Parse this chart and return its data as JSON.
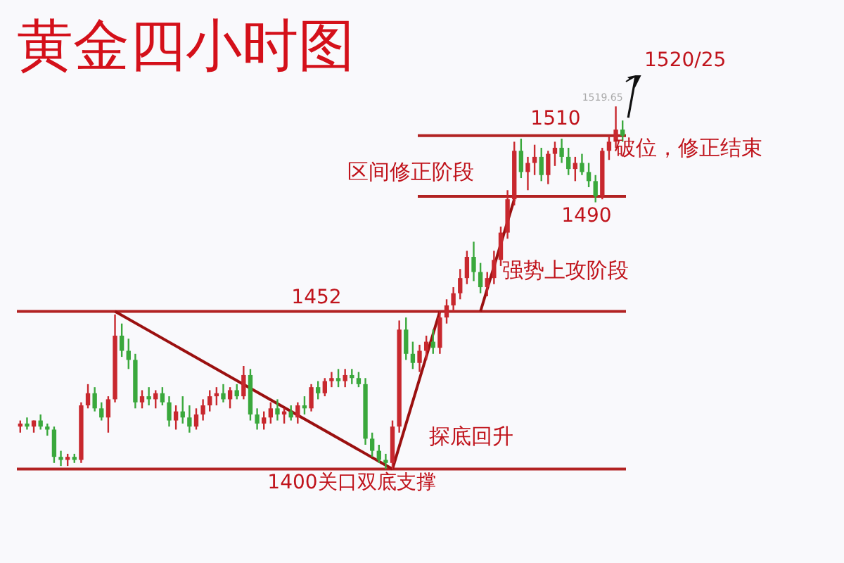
{
  "chart_data": {
    "type": "candlestick",
    "title": "黄金四小时图",
    "categories": [
      null,
      null,
      null,
      null,
      null,
      null,
      null,
      null,
      null,
      null,
      null,
      null,
      null,
      null,
      null,
      null,
      null,
      null,
      null,
      null,
      null,
      null,
      null,
      null,
      null,
      null,
      null,
      null,
      null,
      null,
      null,
      null,
      null,
      null,
      null,
      null,
      null,
      null,
      null,
      null,
      null,
      null,
      null,
      null,
      null,
      null,
      null,
      null,
      null,
      null,
      null,
      null,
      null,
      null,
      null,
      null,
      null,
      null,
      null,
      null,
      null,
      null,
      null,
      null,
      null,
      null,
      null,
      null,
      null,
      null,
      null,
      null,
      null,
      null,
      null,
      null,
      null,
      null,
      null,
      null,
      null,
      null,
      null,
      null,
      null,
      null,
      null,
      null,
      null,
      null
    ],
    "ohlc": [
      [
        1414,
        1416,
        1412,
        1415
      ],
      [
        1415,
        1417,
        1413,
        1414
      ],
      [
        1414,
        1416,
        1412,
        1416
      ],
      [
        1416,
        1418,
        1413,
        1414
      ],
      [
        1414,
        1415,
        1411,
        1413
      ],
      [
        1413,
        1414,
        1402,
        1404
      ],
      [
        1404,
        1406,
        1401,
        1403
      ],
      [
        1403,
        1405,
        1401,
        1404
      ],
      [
        1404,
        1405,
        1402,
        1403
      ],
      [
        1403,
        1422,
        1402,
        1421
      ],
      [
        1421,
        1428,
        1420,
        1425
      ],
      [
        1425,
        1427,
        1419,
        1420
      ],
      [
        1420,
        1422,
        1416,
        1417
      ],
      [
        1417,
        1424,
        1412,
        1423
      ],
      [
        1423,
        1451,
        1422,
        1444
      ],
      [
        1444,
        1448,
        1437,
        1439
      ],
      [
        1439,
        1443,
        1433,
        1436
      ],
      [
        1436,
        1438,
        1420,
        1422
      ],
      [
        1422,
        1426,
        1420,
        1424
      ],
      [
        1424,
        1427,
        1421,
        1423
      ],
      [
        1423,
        1426,
        1420,
        1425
      ],
      [
        1425,
        1427,
        1421,
        1422
      ],
      [
        1422,
        1424,
        1414,
        1416
      ],
      [
        1416,
        1421,
        1413,
        1419
      ],
      [
        1419,
        1424,
        1415,
        1417
      ],
      [
        1417,
        1421,
        1412,
        1414
      ],
      [
        1414,
        1420,
        1413,
        1418
      ],
      [
        1418,
        1423,
        1416,
        1421
      ],
      [
        1421,
        1426,
        1419,
        1424
      ],
      [
        1424,
        1427,
        1421,
        1425
      ],
      [
        1425,
        1428,
        1422,
        1423
      ],
      [
        1423,
        1427,
        1420,
        1426
      ],
      [
        1426,
        1428,
        1423,
        1424
      ],
      [
        1424,
        1434,
        1423,
        1431
      ],
      [
        1431,
        1433,
        1416,
        1418
      ],
      [
        1418,
        1420,
        1413,
        1415
      ],
      [
        1415,
        1419,
        1413,
        1417
      ],
      [
        1417,
        1422,
        1415,
        1420
      ],
      [
        1420,
        1423,
        1416,
        1418
      ],
      [
        1418,
        1420,
        1415,
        1419
      ],
      [
        1419,
        1421,
        1416,
        1417
      ],
      [
        1417,
        1422,
        1415,
        1421
      ],
      [
        1421,
        1424,
        1418,
        1420
      ],
      [
        1420,
        1428,
        1419,
        1427
      ],
      [
        1427,
        1429,
        1423,
        1425
      ],
      [
        1425,
        1430,
        1424,
        1429
      ],
      [
        1429,
        1432,
        1427,
        1430
      ],
      [
        1430,
        1433,
        1427,
        1429
      ],
      [
        1429,
        1433,
        1427,
        1431
      ],
      [
        1431,
        1433,
        1428,
        1430
      ],
      [
        1430,
        1432,
        1427,
        1428
      ],
      [
        1428,
        1430,
        1408,
        1410
      ],
      [
        1410,
        1412,
        1404,
        1406
      ],
      [
        1406,
        1408,
        1402,
        1403
      ],
      [
        1403,
        1405,
        1400,
        1402
      ],
      [
        1402,
        1416,
        1400,
        1414
      ],
      [
        1414,
        1449,
        1412,
        1446
      ],
      [
        1446,
        1450,
        1436,
        1438
      ],
      [
        1438,
        1442,
        1433,
        1435
      ],
      [
        1435,
        1441,
        1432,
        1439
      ],
      [
        1439,
        1444,
        1436,
        1442
      ],
      [
        1442,
        1446,
        1438,
        1440
      ],
      [
        1440,
        1452,
        1438,
        1450
      ],
      [
        1450,
        1456,
        1448,
        1454
      ],
      [
        1454,
        1460,
        1452,
        1458
      ],
      [
        1458,
        1466,
        1456,
        1463
      ],
      [
        1463,
        1472,
        1461,
        1470
      ],
      [
        1470,
        1475,
        1462,
        1465
      ],
      [
        1465,
        1468,
        1458,
        1460
      ],
      [
        1460,
        1465,
        1457,
        1463
      ],
      [
        1463,
        1472,
        1461,
        1469
      ],
      [
        1469,
        1480,
        1467,
        1478
      ],
      [
        1478,
        1492,
        1476,
        1489
      ],
      [
        1489,
        1508,
        1487,
        1505
      ],
      [
        1505,
        1509,
        1496,
        1498
      ],
      [
        1498,
        1503,
        1492,
        1501
      ],
      [
        1501,
        1507,
        1497,
        1503
      ],
      [
        1503,
        1506,
        1495,
        1497
      ],
      [
        1497,
        1505,
        1494,
        1504
      ],
      [
        1504,
        1508,
        1500,
        1506
      ],
      [
        1506,
        1509,
        1501,
        1503
      ],
      [
        1503,
        1506,
        1497,
        1499
      ],
      [
        1499,
        1503,
        1495,
        1501
      ],
      [
        1501,
        1504,
        1497,
        1498
      ],
      [
        1498,
        1501,
        1493,
        1495
      ],
      [
        1495,
        1497,
        1488,
        1490
      ],
      [
        1490,
        1506,
        1489,
        1505
      ],
      [
        1505,
        1510,
        1502,
        1508
      ],
      [
        1508,
        1519.65,
        1506,
        1512
      ],
      [
        1512,
        1515,
        1508,
        1510
      ]
    ],
    "series": [
      {
        "type": "line",
        "color": "#9b1010",
        "values": [
          null,
          null,
          null,
          null,
          null,
          null,
          null,
          null,
          null,
          null,
          null,
          null,
          null,
          null,
          1452,
          null,
          null,
          null,
          null,
          null,
          null,
          null,
          null,
          null,
          null,
          null,
          null,
          null,
          null,
          null,
          null,
          null,
          null,
          null,
          null,
          null,
          null,
          null,
          null,
          null,
          null,
          null,
          null,
          null,
          null,
          null,
          null,
          null,
          null,
          null,
          null,
          null,
          null,
          null,
          null,
          1400,
          null,
          null,
          null,
          null,
          null,
          null,
          null,
          null,
          null,
          null,
          null,
          null,
          null,
          null,
          null,
          null,
          null,
          null,
          null,
          null,
          null,
          null,
          null,
          null,
          null,
          null,
          null,
          null,
          null,
          null,
          null,
          null,
          null,
          null
        ]
      },
      {
        "type": "line",
        "color": "#9b1010",
        "values": [
          null,
          null,
          null,
          null,
          null,
          null,
          null,
          null,
          null,
          null,
          null,
          null,
          null,
          null,
          null,
          null,
          null,
          null,
          null,
          null,
          null,
          null,
          null,
          null,
          null,
          null,
          null,
          null,
          null,
          null,
          null,
          null,
          null,
          null,
          null,
          null,
          null,
          null,
          null,
          null,
          null,
          null,
          null,
          null,
          null,
          null,
          null,
          null,
          null,
          null,
          null,
          null,
          null,
          null,
          null,
          1400,
          null,
          null,
          null,
          null,
          null,
          null,
          1452,
          null,
          null,
          null,
          null,
          null,
          null,
          null,
          null,
          null,
          null,
          null,
          null,
          null,
          null,
          null,
          null,
          null,
          null,
          null,
          null,
          null,
          null,
          null,
          null,
          null,
          null,
          null
        ]
      },
      {
        "type": "line",
        "color": "#9b1010",
        "values": [
          null,
          null,
          null,
          null,
          null,
          null,
          null,
          null,
          null,
          null,
          null,
          null,
          null,
          null,
          null,
          null,
          null,
          null,
          null,
          null,
          null,
          null,
          null,
          null,
          null,
          null,
          null,
          null,
          null,
          null,
          null,
          null,
          null,
          null,
          null,
          null,
          null,
          null,
          null,
          null,
          null,
          null,
          null,
          null,
          null,
          null,
          null,
          null,
          null,
          null,
          null,
          null,
          null,
          null,
          null,
          null,
          null,
          null,
          null,
          null,
          null,
          null,
          null,
          null,
          null,
          null,
          null,
          null,
          1452,
          null,
          null,
          null,
          null,
          1489,
          null,
          null,
          null,
          null,
          null,
          null,
          null,
          null,
          null,
          null,
          null,
          null,
          null,
          null,
          null,
          null
        ]
      }
    ],
    "ref_lines": [
      {
        "axis": "y",
        "value": 1400,
        "label": "1400关口双底支撑",
        "color": "#b22222"
      },
      {
        "axis": "y",
        "value": 1452,
        "label": "1452",
        "color": "#b22222"
      },
      {
        "axis": "y",
        "value": 1490,
        "label": "1490",
        "color": "#b22222"
      },
      {
        "axis": "y",
        "value": 1510,
        "label": "1510",
        "color": "#b22222"
      }
    ],
    "annotations": [
      "区间修正阶段",
      "强势上攻阶段",
      "探底回升",
      "破位，修正结束",
      "1520/25",
      "1519.65"
    ]
  }
}
